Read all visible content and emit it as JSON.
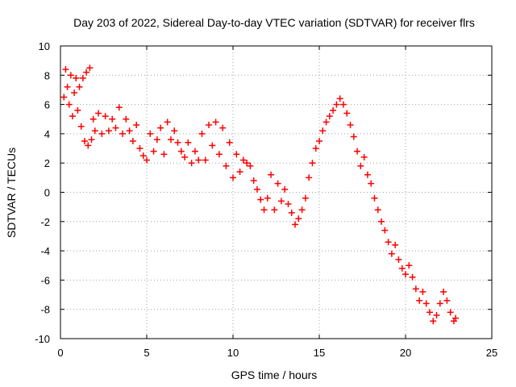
{
  "chart_data": {
    "type": "scatter",
    "title": "Day 203 of 2022, Sidereal Day-to-day VTEC variation (SDTVAR) for receiver flrs",
    "xlabel": "GPS time / hours",
    "ylabel": "SDTVAR / TECUs",
    "xlim": [
      0,
      25
    ],
    "ylim": [
      -10,
      10
    ],
    "x_ticks": [
      0,
      5,
      10,
      15,
      20,
      25
    ],
    "y_ticks": [
      -10,
      -8,
      -6,
      -4,
      -2,
      0,
      2,
      4,
      6,
      8,
      10
    ],
    "grid": true,
    "marker": "+",
    "color": "#ff0000",
    "series": [
      {
        "name": "SDTVAR",
        "points": [
          [
            0.2,
            6.5
          ],
          [
            0.3,
            8.4
          ],
          [
            0.4,
            7.2
          ],
          [
            0.5,
            6.0
          ],
          [
            0.6,
            8.0
          ],
          [
            0.7,
            5.2
          ],
          [
            0.8,
            6.8
          ],
          [
            0.9,
            7.8
          ],
          [
            1.0,
            5.6
          ],
          [
            1.1,
            7.2
          ],
          [
            1.2,
            4.5
          ],
          [
            1.3,
            7.8
          ],
          [
            1.4,
            3.5
          ],
          [
            1.5,
            8.2
          ],
          [
            1.6,
            3.2
          ],
          [
            1.7,
            8.5
          ],
          [
            1.8,
            3.6
          ],
          [
            1.9,
            5.0
          ],
          [
            2.0,
            4.2
          ],
          [
            2.2,
            5.4
          ],
          [
            2.4,
            4.0
          ],
          [
            2.6,
            5.2
          ],
          [
            2.8,
            4.2
          ],
          [
            3.0,
            5.0
          ],
          [
            3.2,
            4.4
          ],
          [
            3.4,
            5.8
          ],
          [
            3.6,
            4.0
          ],
          [
            3.8,
            5.0
          ],
          [
            4.0,
            4.2
          ],
          [
            4.2,
            3.5
          ],
          [
            4.4,
            4.6
          ],
          [
            4.6,
            3.0
          ],
          [
            4.8,
            2.5
          ],
          [
            5.0,
            2.2
          ],
          [
            5.2,
            4.0
          ],
          [
            5.4,
            2.8
          ],
          [
            5.6,
            3.6
          ],
          [
            5.8,
            4.4
          ],
          [
            6.0,
            2.6
          ],
          [
            6.2,
            4.8
          ],
          [
            6.4,
            3.6
          ],
          [
            6.6,
            4.2
          ],
          [
            6.8,
            3.4
          ],
          [
            7.0,
            2.8
          ],
          [
            7.2,
            2.4
          ],
          [
            7.4,
            3.4
          ],
          [
            7.6,
            2.0
          ],
          [
            7.8,
            2.8
          ],
          [
            8.0,
            2.2
          ],
          [
            8.2,
            4.0
          ],
          [
            8.4,
            2.2
          ],
          [
            8.6,
            4.6
          ],
          [
            8.8,
            3.2
          ],
          [
            9.0,
            4.8
          ],
          [
            9.2,
            2.6
          ],
          [
            9.4,
            4.4
          ],
          [
            9.6,
            1.8
          ],
          [
            9.8,
            3.4
          ],
          [
            10.0,
            1.0
          ],
          [
            10.2,
            2.6
          ],
          [
            10.4,
            1.4
          ],
          [
            10.6,
            2.2
          ],
          [
            10.8,
            2.0
          ],
          [
            11.0,
            1.8
          ],
          [
            11.2,
            0.8
          ],
          [
            11.4,
            0.2
          ],
          [
            11.6,
            -0.5
          ],
          [
            11.8,
            -1.2
          ],
          [
            12.0,
            -0.4
          ],
          [
            12.2,
            1.2
          ],
          [
            12.4,
            -1.2
          ],
          [
            12.6,
            0.6
          ],
          [
            12.8,
            -0.6
          ],
          [
            13.0,
            0.2
          ],
          [
            13.2,
            -0.8
          ],
          [
            13.4,
            -1.4
          ],
          [
            13.6,
            -2.2
          ],
          [
            13.8,
            -1.8
          ],
          [
            14.0,
            -1.2
          ],
          [
            14.2,
            -0.4
          ],
          [
            14.4,
            1.0
          ],
          [
            14.6,
            2.0
          ],
          [
            14.8,
            3.0
          ],
          [
            15.0,
            3.5
          ],
          [
            15.2,
            4.2
          ],
          [
            15.4,
            4.8
          ],
          [
            15.6,
            5.2
          ],
          [
            15.8,
            5.6
          ],
          [
            16.0,
            6.0
          ],
          [
            16.2,
            6.4
          ],
          [
            16.4,
            6.0
          ],
          [
            16.6,
            5.4
          ],
          [
            16.8,
            4.6
          ],
          [
            17.0,
            3.8
          ],
          [
            17.2,
            2.8
          ],
          [
            17.4,
            1.8
          ],
          [
            17.6,
            2.4
          ],
          [
            17.8,
            1.2
          ],
          [
            18.0,
            0.6
          ],
          [
            18.2,
            -0.4
          ],
          [
            18.4,
            -1.2
          ],
          [
            18.6,
            -2.0
          ],
          [
            18.8,
            -2.6
          ],
          [
            19.0,
            -3.4
          ],
          [
            19.2,
            -4.2
          ],
          [
            19.4,
            -3.6
          ],
          [
            19.6,
            -4.6
          ],
          [
            19.8,
            -5.2
          ],
          [
            20.0,
            -5.6
          ],
          [
            20.2,
            -5.0
          ],
          [
            20.4,
            -5.8
          ],
          [
            20.6,
            -6.6
          ],
          [
            20.8,
            -7.4
          ],
          [
            21.0,
            -6.8
          ],
          [
            21.2,
            -7.6
          ],
          [
            21.4,
            -8.2
          ],
          [
            21.6,
            -8.8
          ],
          [
            21.8,
            -8.4
          ],
          [
            22.0,
            -7.6
          ],
          [
            22.2,
            -6.8
          ],
          [
            22.4,
            -7.4
          ],
          [
            22.6,
            -8.2
          ],
          [
            22.8,
            -8.8
          ],
          [
            22.9,
            -8.6
          ]
        ]
      }
    ]
  }
}
